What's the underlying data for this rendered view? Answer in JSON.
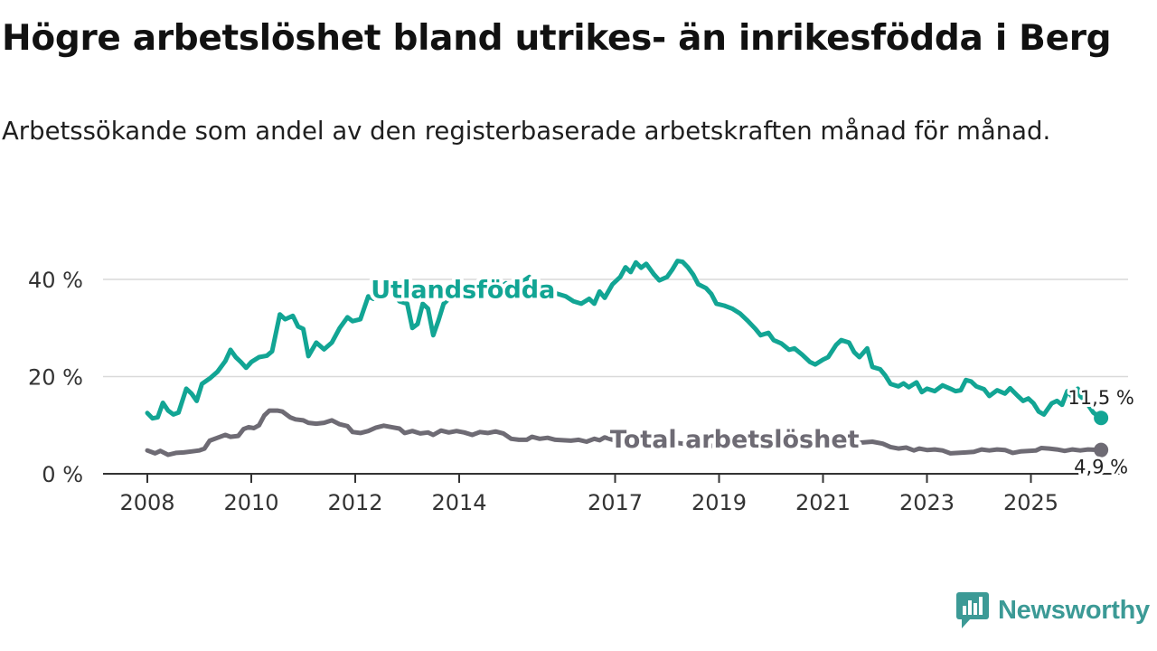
{
  "title": "Högre arbetslöshet bland utrikes- än inrikesfödda i Berg",
  "subtitle": "Arbetssökande som andel av den registerbaserade arbetskraften månad för månad.",
  "brand": {
    "name": "Newsworthy",
    "icon": "bar-chart-speech-bubble-icon",
    "color": "#3c9a96"
  },
  "chart_data": {
    "type": "line",
    "title": "Högre arbetslöshet bland utrikes- än inrikesfödda i Berg",
    "xlabel": "",
    "ylabel": "",
    "x_unit": "year",
    "xlim": [
      2007.75,
      2026.35
    ],
    "ylim": [
      0,
      45
    ],
    "x_ticks": [
      2008,
      2010,
      2012,
      2014,
      2017,
      2019,
      2021,
      2023,
      2025
    ],
    "x_tick_labels": [
      "2008",
      "2010",
      "2012",
      "2014",
      "2017",
      "2019",
      "2021",
      "2023",
      "2025"
    ],
    "y_ticks": [
      0,
      20,
      40
    ],
    "y_tick_labels": [
      "0 %",
      "20 %",
      "40 %"
    ],
    "grid": true,
    "legend": "inline labels",
    "series": [
      {
        "name": "Utlandsfödda",
        "color": "#12a594",
        "label_at": [
          2012.3,
          36.2
        ],
        "end_label": "11,5 %",
        "points": [
          [
            2008.0,
            12.5
          ],
          [
            2008.1,
            11.4
          ],
          [
            2008.2,
            11.6
          ],
          [
            2008.3,
            14.6
          ],
          [
            2008.4,
            13.0
          ],
          [
            2008.5,
            12.2
          ],
          [
            2008.6,
            12.6
          ],
          [
            2008.75,
            17.5
          ],
          [
            2008.85,
            16.5
          ],
          [
            2008.95,
            15.0
          ],
          [
            2009.05,
            18.5
          ],
          [
            2009.2,
            19.6
          ],
          [
            2009.35,
            21.0
          ],
          [
            2009.5,
            23.2
          ],
          [
            2009.6,
            25.5
          ],
          [
            2009.7,
            24.0
          ],
          [
            2009.8,
            23.0
          ],
          [
            2009.9,
            21.8
          ],
          [
            2010.0,
            23.0
          ],
          [
            2010.15,
            24.0
          ],
          [
            2010.3,
            24.3
          ],
          [
            2010.4,
            25.2
          ],
          [
            2010.55,
            32.8
          ],
          [
            2010.65,
            31.8
          ],
          [
            2010.8,
            32.5
          ],
          [
            2010.9,
            30.3
          ],
          [
            2011.0,
            29.8
          ],
          [
            2011.1,
            24.2
          ],
          [
            2011.25,
            27.0
          ],
          [
            2011.4,
            25.6
          ],
          [
            2011.55,
            27.0
          ],
          [
            2011.7,
            30.0
          ],
          [
            2011.85,
            32.2
          ],
          [
            2011.95,
            31.4
          ],
          [
            2012.1,
            31.8
          ],
          [
            2012.25,
            36.5
          ],
          [
            2012.35,
            36.0
          ],
          [
            2012.45,
            37.2
          ],
          [
            2012.55,
            36.6
          ],
          [
            2012.7,
            37.4
          ],
          [
            2012.85,
            35.5
          ],
          [
            2013.0,
            35.0
          ],
          [
            2013.1,
            30.0
          ],
          [
            2013.2,
            30.8
          ],
          [
            2013.3,
            35.0
          ],
          [
            2013.4,
            34.0
          ],
          [
            2013.5,
            28.5
          ],
          [
            2013.6,
            31.5
          ],
          [
            2013.7,
            35.0
          ],
          [
            2013.85,
            36.5
          ],
          [
            2014.0,
            37.5
          ],
          [
            2014.15,
            39.0
          ],
          [
            2014.3,
            37.8
          ],
          [
            2014.45,
            38.0
          ],
          [
            2014.6,
            39.2
          ],
          [
            2014.75,
            38.0
          ],
          [
            2014.9,
            39.2
          ],
          [
            2015.05,
            37.8
          ],
          [
            2015.2,
            39.4
          ],
          [
            2015.35,
            40.5
          ],
          [
            2015.45,
            39.2
          ],
          [
            2015.6,
            38.0
          ],
          [
            2015.75,
            37.5
          ],
          [
            2015.9,
            37.0
          ],
          [
            2016.05,
            36.5
          ],
          [
            2016.2,
            35.5
          ],
          [
            2016.35,
            35.0
          ],
          [
            2016.5,
            36.0
          ],
          [
            2016.6,
            35.0
          ],
          [
            2016.7,
            37.5
          ],
          [
            2016.8,
            36.2
          ],
          [
            2016.95,
            39.0
          ],
          [
            2017.1,
            40.5
          ],
          [
            2017.2,
            42.5
          ],
          [
            2017.3,
            41.5
          ],
          [
            2017.4,
            43.5
          ],
          [
            2017.5,
            42.4
          ],
          [
            2017.6,
            43.2
          ],
          [
            2017.75,
            41.0
          ],
          [
            2017.85,
            39.8
          ],
          [
            2018.0,
            40.5
          ],
          [
            2018.1,
            42.0
          ],
          [
            2018.2,
            43.8
          ],
          [
            2018.3,
            43.6
          ],
          [
            2018.4,
            42.5
          ],
          [
            2018.5,
            41.0
          ],
          [
            2018.6,
            39.0
          ],
          [
            2018.75,
            38.2
          ],
          [
            2018.85,
            37.0
          ],
          [
            2018.95,
            35.0
          ],
          [
            2019.1,
            34.6
          ],
          [
            2019.25,
            34.0
          ],
          [
            2019.4,
            33.0
          ],
          [
            2019.55,
            31.5
          ],
          [
            2019.7,
            29.8
          ],
          [
            2019.8,
            28.5
          ],
          [
            2019.95,
            29.0
          ],
          [
            2020.05,
            27.5
          ],
          [
            2020.2,
            26.8
          ],
          [
            2020.35,
            25.5
          ],
          [
            2020.45,
            25.8
          ],
          [
            2020.6,
            24.5
          ],
          [
            2020.75,
            23.0
          ],
          [
            2020.85,
            22.5
          ],
          [
            2021.0,
            23.5
          ],
          [
            2021.1,
            24.0
          ],
          [
            2021.25,
            26.5
          ],
          [
            2021.35,
            27.5
          ],
          [
            2021.5,
            27.0
          ],
          [
            2021.6,
            25.0
          ],
          [
            2021.7,
            24.0
          ],
          [
            2021.85,
            25.8
          ],
          [
            2021.95,
            22.0
          ],
          [
            2022.1,
            21.5
          ],
          [
            2022.2,
            20.2
          ],
          [
            2022.3,
            18.5
          ],
          [
            2022.45,
            18.0
          ],
          [
            2022.55,
            18.6
          ],
          [
            2022.65,
            17.8
          ],
          [
            2022.8,
            18.8
          ],
          [
            2022.9,
            16.8
          ],
          [
            2023.0,
            17.5
          ],
          [
            2023.15,
            17.0
          ],
          [
            2023.3,
            18.2
          ],
          [
            2023.45,
            17.5
          ],
          [
            2023.55,
            17.0
          ],
          [
            2023.65,
            17.2
          ],
          [
            2023.75,
            19.3
          ],
          [
            2023.85,
            19.0
          ],
          [
            2023.95,
            18.0
          ],
          [
            2024.1,
            17.4
          ],
          [
            2024.2,
            16.0
          ],
          [
            2024.35,
            17.2
          ],
          [
            2024.5,
            16.5
          ],
          [
            2024.6,
            17.6
          ],
          [
            2024.75,
            16.0
          ],
          [
            2024.85,
            15.0
          ],
          [
            2024.95,
            15.5
          ],
          [
            2025.05,
            14.5
          ],
          [
            2025.15,
            12.8
          ],
          [
            2025.25,
            12.2
          ],
          [
            2025.4,
            14.5
          ],
          [
            2025.5,
            15.0
          ],
          [
            2025.6,
            14.2
          ],
          [
            2025.7,
            17.0
          ],
          [
            2025.8,
            15.8
          ],
          [
            2025.9,
            17.5
          ],
          [
            2025.95,
            16.0
          ],
          [
            2026.05,
            15.0
          ],
          [
            2026.2,
            12.6
          ],
          [
            2026.35,
            11.5
          ]
        ]
      },
      {
        "name": "Total arbetslöshet",
        "color": "#6e6b74",
        "label_at": [
          2019.3,
          5.4
        ],
        "end_label": "4,9 %",
        "points": [
          [
            2008.0,
            4.8
          ],
          [
            2008.15,
            4.2
          ],
          [
            2008.25,
            4.7
          ],
          [
            2008.4,
            3.9
          ],
          [
            2008.55,
            4.3
          ],
          [
            2008.7,
            4.4
          ],
          [
            2008.85,
            4.6
          ],
          [
            2009.0,
            4.8
          ],
          [
            2009.1,
            5.2
          ],
          [
            2009.2,
            6.8
          ],
          [
            2009.35,
            7.4
          ],
          [
            2009.5,
            8.0
          ],
          [
            2009.6,
            7.6
          ],
          [
            2009.75,
            7.8
          ],
          [
            2009.85,
            9.2
          ],
          [
            2009.95,
            9.6
          ],
          [
            2010.05,
            9.4
          ],
          [
            2010.15,
            10.0
          ],
          [
            2010.25,
            12.0
          ],
          [
            2010.35,
            13.0
          ],
          [
            2010.5,
            13.0
          ],
          [
            2010.6,
            12.8
          ],
          [
            2010.75,
            11.6
          ],
          [
            2010.85,
            11.2
          ],
          [
            2011.0,
            11.0
          ],
          [
            2011.1,
            10.5
          ],
          [
            2011.25,
            10.3
          ],
          [
            2011.4,
            10.5
          ],
          [
            2011.55,
            11.0
          ],
          [
            2011.7,
            10.2
          ],
          [
            2011.85,
            9.8
          ],
          [
            2011.95,
            8.6
          ],
          [
            2012.1,
            8.4
          ],
          [
            2012.25,
            8.8
          ],
          [
            2012.4,
            9.5
          ],
          [
            2012.55,
            9.9
          ],
          [
            2012.7,
            9.6
          ],
          [
            2012.85,
            9.3
          ],
          [
            2012.95,
            8.4
          ],
          [
            2013.1,
            8.8
          ],
          [
            2013.25,
            8.3
          ],
          [
            2013.4,
            8.5
          ],
          [
            2013.5,
            8.0
          ],
          [
            2013.65,
            8.9
          ],
          [
            2013.8,
            8.5
          ],
          [
            2013.95,
            8.8
          ],
          [
            2014.1,
            8.5
          ],
          [
            2014.25,
            8.0
          ],
          [
            2014.4,
            8.6
          ],
          [
            2014.55,
            8.4
          ],
          [
            2014.7,
            8.7
          ],
          [
            2014.85,
            8.3
          ],
          [
            2015.0,
            7.2
          ],
          [
            2015.15,
            7.0
          ],
          [
            2015.3,
            7.0
          ],
          [
            2015.4,
            7.6
          ],
          [
            2015.55,
            7.2
          ],
          [
            2015.7,
            7.4
          ],
          [
            2015.85,
            7.0
          ],
          [
            2016.0,
            6.9
          ],
          [
            2016.15,
            6.8
          ],
          [
            2016.3,
            7.0
          ],
          [
            2016.45,
            6.6
          ],
          [
            2016.6,
            7.2
          ],
          [
            2016.7,
            6.9
          ],
          [
            2016.8,
            7.5
          ],
          [
            2016.95,
            7.0
          ],
          [
            2017.1,
            7.3
          ],
          [
            2017.25,
            7.5
          ],
          [
            2017.4,
            7.4
          ],
          [
            2017.55,
            7.8
          ],
          [
            2017.7,
            7.6
          ],
          [
            2017.8,
            7.8
          ],
          [
            2017.95,
            7.0
          ],
          [
            2018.1,
            6.5
          ],
          [
            2018.3,
            6.2
          ],
          [
            2018.5,
            6.0
          ],
          [
            2018.75,
            5.8
          ],
          [
            2019.0,
            5.7
          ],
          [
            2019.3,
            5.6
          ],
          [
            2019.6,
            5.7
          ],
          [
            2019.9,
            5.8
          ],
          [
            2020.2,
            6.0
          ],
          [
            2020.5,
            5.9
          ],
          [
            2020.8,
            5.9
          ],
          [
            2021.1,
            6.2
          ],
          [
            2021.4,
            6.3
          ],
          [
            2021.7,
            6.4
          ],
          [
            2021.95,
            6.6
          ],
          [
            2022.15,
            6.2
          ],
          [
            2022.3,
            5.5
          ],
          [
            2022.45,
            5.2
          ],
          [
            2022.6,
            5.4
          ],
          [
            2022.75,
            4.8
          ],
          [
            2022.85,
            5.2
          ],
          [
            2023.0,
            4.9
          ],
          [
            2023.15,
            5.0
          ],
          [
            2023.3,
            4.8
          ],
          [
            2023.45,
            4.2
          ],
          [
            2023.6,
            4.3
          ],
          [
            2023.75,
            4.4
          ],
          [
            2023.9,
            4.5
          ],
          [
            2024.05,
            5.0
          ],
          [
            2024.2,
            4.8
          ],
          [
            2024.35,
            5.0
          ],
          [
            2024.5,
            4.9
          ],
          [
            2024.65,
            4.3
          ],
          [
            2024.8,
            4.6
          ],
          [
            2024.95,
            4.7
          ],
          [
            2025.1,
            4.8
          ],
          [
            2025.2,
            5.3
          ],
          [
            2025.35,
            5.2
          ],
          [
            2025.5,
            5.0
          ],
          [
            2025.65,
            4.7
          ],
          [
            2025.8,
            5.0
          ],
          [
            2025.95,
            4.8
          ],
          [
            2026.1,
            5.0
          ],
          [
            2026.35,
            4.9
          ]
        ]
      }
    ]
  }
}
